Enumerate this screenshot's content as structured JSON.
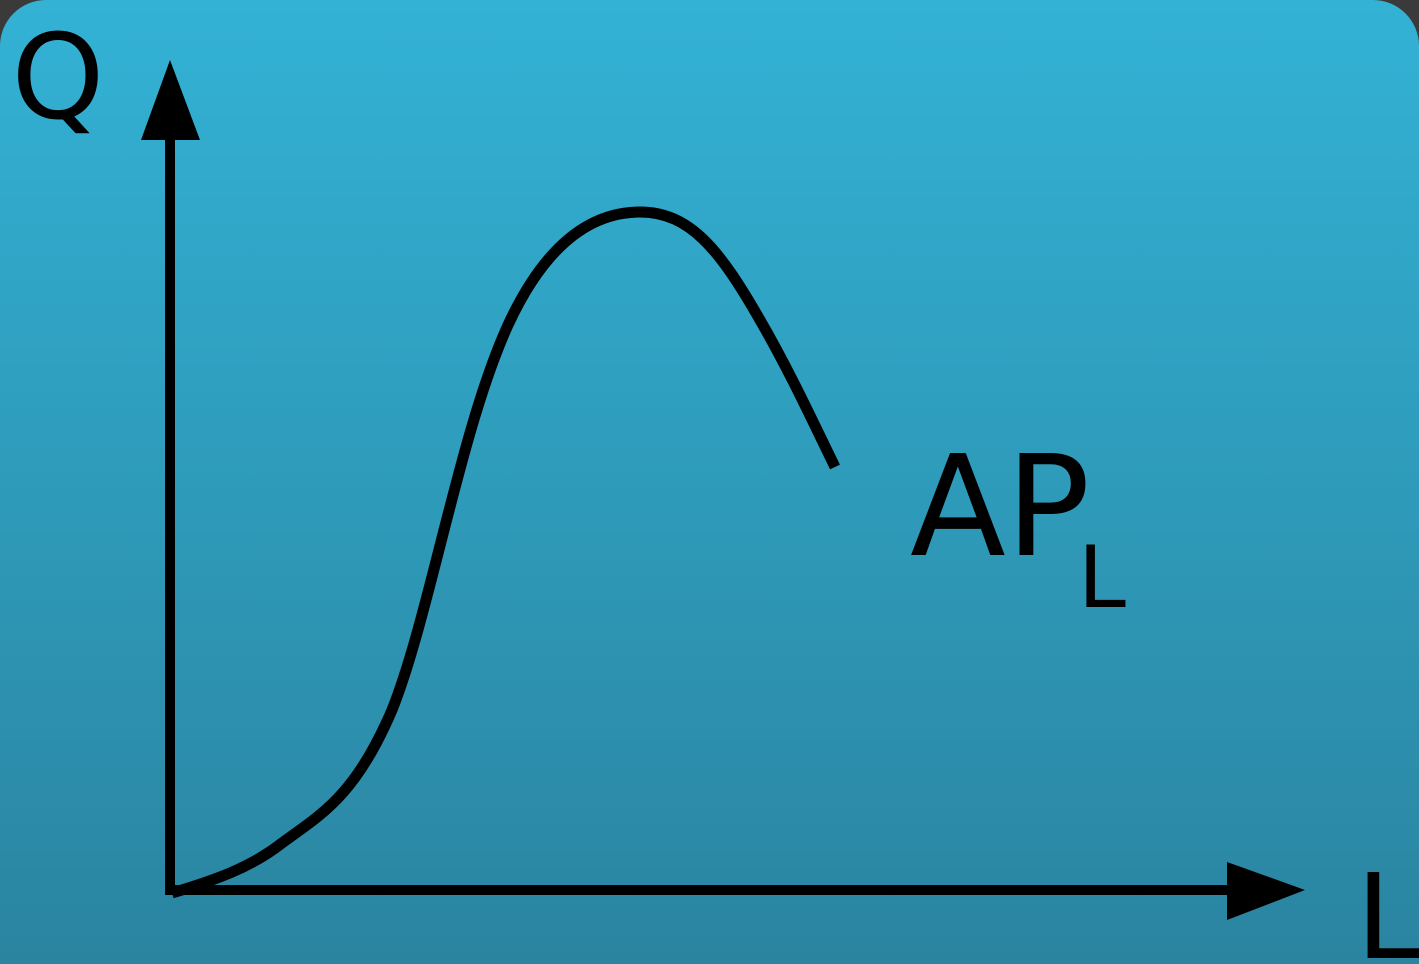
{
  "colors": {
    "background_top": "#33b2d5",
    "background_bottom": "#2a84a0",
    "ink": "#000000"
  },
  "diagram": {
    "y_axis_label": "Q",
    "x_axis_label": "L",
    "curve_label": {
      "main": "AP",
      "subscript": "L"
    }
  }
}
